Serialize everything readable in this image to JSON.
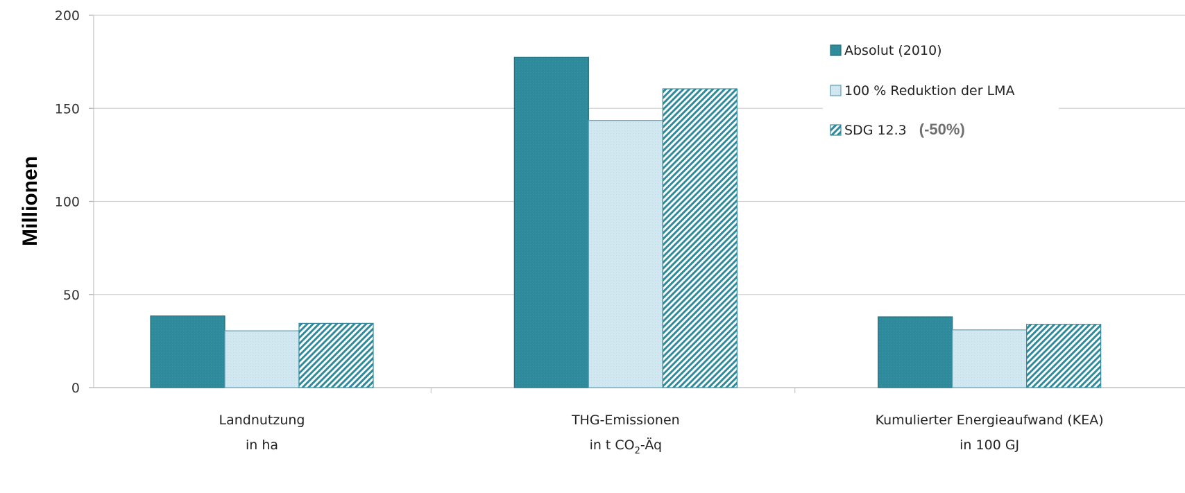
{
  "chart_data": {
    "type": "bar",
    "ylabel": "Millionen",
    "ylim": [
      0,
      200
    ],
    "yticks": [
      "0",
      "50",
      "100",
      "150",
      "200"
    ],
    "grid": true,
    "legend_position": "top-right",
    "categories": [
      {
        "line1": "Landnutzung",
        "line2": "in ha"
      },
      {
        "line1": "THG-Emissionen",
        "line2": "in t CO",
        "line2_sub": "2",
        "line2_tail": "-Äq"
      },
      {
        "line1": "Kumulierter Energieaufwand (KEA)",
        "line2": "in 100 GJ"
      }
    ],
    "series": [
      {
        "name": "Absolut (2010)",
        "values": [
          38.5,
          177.5,
          38
        ],
        "color": "#2f8a9b",
        "pattern": "solid"
      },
      {
        "name": "100 % Reduktion der LMA",
        "values": [
          30.5,
          143.5,
          31
        ],
        "color": "#cfe6ee",
        "pattern": "light"
      },
      {
        "name": "SDG 12.3",
        "name_suffix": "(-50%)",
        "values": [
          34.5,
          160.5,
          34
        ],
        "color": "#2f8a9b",
        "pattern": "hatch"
      }
    ]
  }
}
